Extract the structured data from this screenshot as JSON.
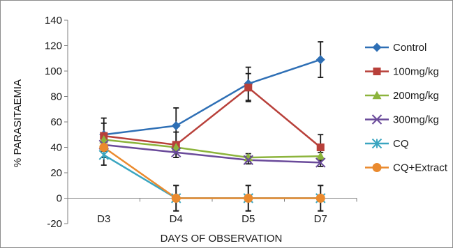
{
  "chart_data": {
    "type": "line",
    "title": "",
    "xlabel": "DAYS OF OBSERVATION",
    "ylabel": "% PARASITAEMIA",
    "categories": [
      "D3",
      "D4",
      "D5",
      "D7"
    ],
    "ylim": [
      -20,
      140
    ],
    "yticks": [
      -20,
      0,
      20,
      40,
      60,
      80,
      100,
      120,
      140
    ],
    "grid": false,
    "legend_position": "right",
    "series": [
      {
        "name": "Control",
        "color": "#2e6fb5",
        "marker": "diamond",
        "values": [
          50,
          57,
          90,
          109
        ],
        "errors": [
          13,
          14,
          13,
          14
        ]
      },
      {
        "name": "100mg/kg",
        "color": "#b8403a",
        "marker": "square",
        "values": [
          49,
          42,
          87,
          40
        ],
        "errors": [
          10,
          10,
          11,
          10
        ]
      },
      {
        "name": "200mg/kg",
        "color": "#8cb43c",
        "marker": "triangle",
        "values": [
          46,
          40,
          32,
          33
        ],
        "errors": [
          4,
          4,
          3,
          3
        ]
      },
      {
        "name": "300mg/kg",
        "color": "#6a4a9a",
        "marker": "x",
        "values": [
          42,
          36,
          30,
          28
        ],
        "errors": [
          4,
          4,
          3,
          3
        ]
      },
      {
        "name": "CQ",
        "color": "#3aa5c0",
        "marker": "asterisk",
        "values": [
          34,
          0,
          0,
          0
        ],
        "errors": [
          8,
          10,
          10,
          10
        ]
      },
      {
        "name": "CQ+Extract",
        "color": "#ea8a2e",
        "marker": "circle",
        "values": [
          40,
          0,
          0,
          0
        ],
        "errors": [
          8,
          10,
          10,
          10
        ]
      }
    ]
  }
}
